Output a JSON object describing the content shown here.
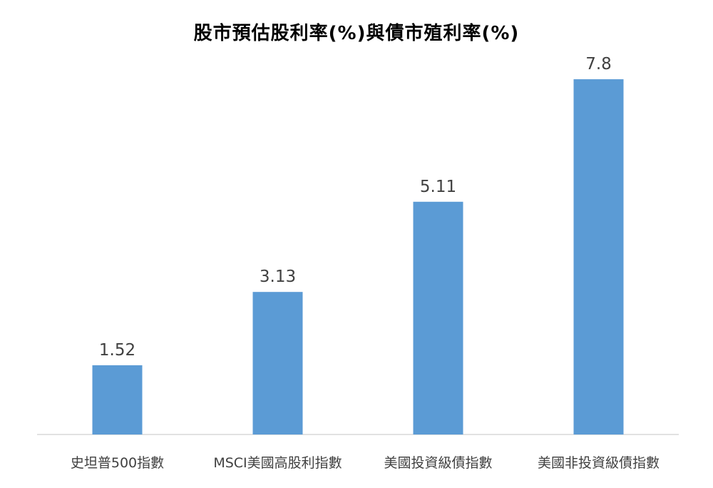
{
  "chart_data": {
    "type": "bar",
    "title": "股市預估股利率(%)與債市殖利率(%)",
    "categories": [
      "史坦普500指數",
      "MSCI美國高股利指數",
      "美國投資級債指數",
      "美國非投資級債指數"
    ],
    "values": [
      1.52,
      3.13,
      5.11,
      7.8
    ],
    "value_labels": [
      "1.52",
      "3.13",
      "5.11",
      "7.8"
    ],
    "xlabel": "",
    "ylabel": "",
    "ylim": [
      0,
      8.6
    ],
    "grid": false,
    "legend": "none",
    "colors": {
      "bar": "#5b9bd5",
      "axis": "#d9d9d9",
      "text": "#404040"
    }
  }
}
